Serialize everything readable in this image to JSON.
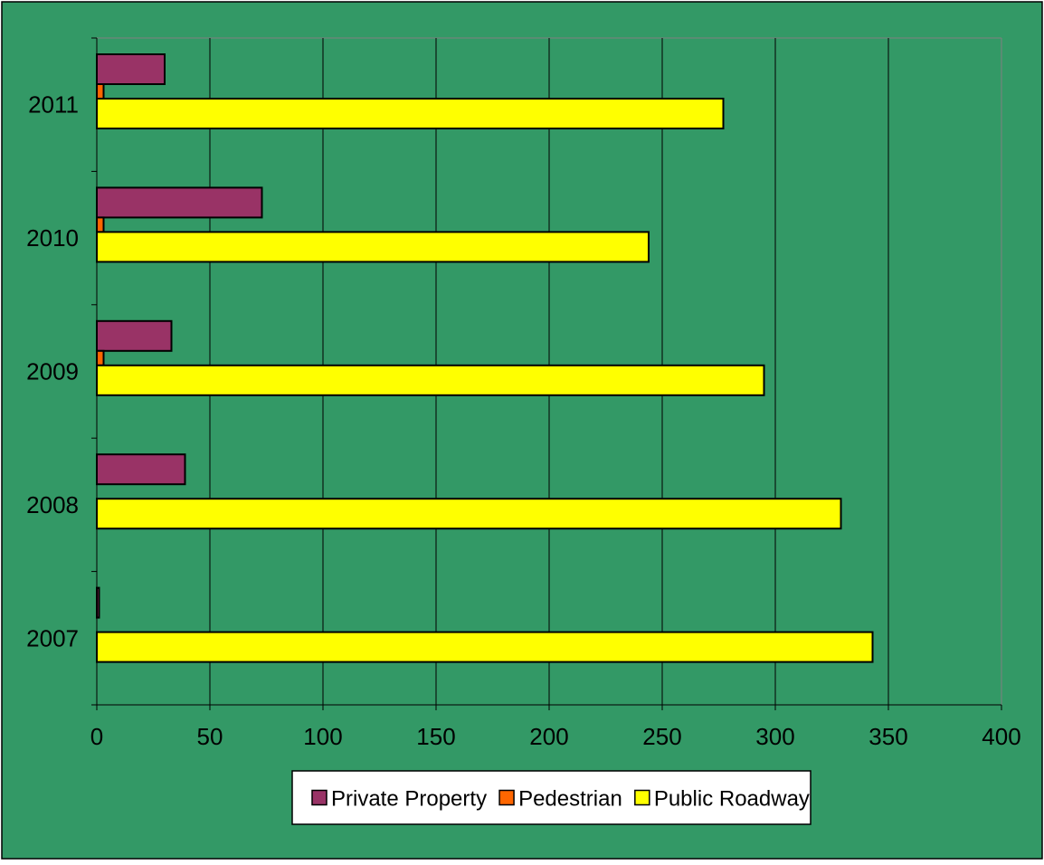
{
  "chart_data": {
    "type": "bar",
    "orientation": "horizontal",
    "categories": [
      "2007",
      "2008",
      "2009",
      "2010",
      "2011"
    ],
    "series": [
      {
        "name": "Private Property",
        "color": "#993366",
        "values": [
          1,
          39,
          33,
          73,
          30
        ]
      },
      {
        "name": "Pedestrian",
        "color": "#FF6600",
        "values": [
          0,
          0,
          3,
          3,
          3
        ]
      },
      {
        "name": "Public Roadway",
        "color": "#FFFF00",
        "values": [
          343,
          329,
          295,
          244,
          277
        ]
      }
    ],
    "xlim": [
      0,
      400
    ],
    "xticks": [
      0,
      50,
      100,
      150,
      200,
      250,
      300,
      350,
      400
    ],
    "grid": true,
    "legend_position": "bottom",
    "background_color": "#339966",
    "title": "",
    "xlabel": "",
    "ylabel": ""
  }
}
